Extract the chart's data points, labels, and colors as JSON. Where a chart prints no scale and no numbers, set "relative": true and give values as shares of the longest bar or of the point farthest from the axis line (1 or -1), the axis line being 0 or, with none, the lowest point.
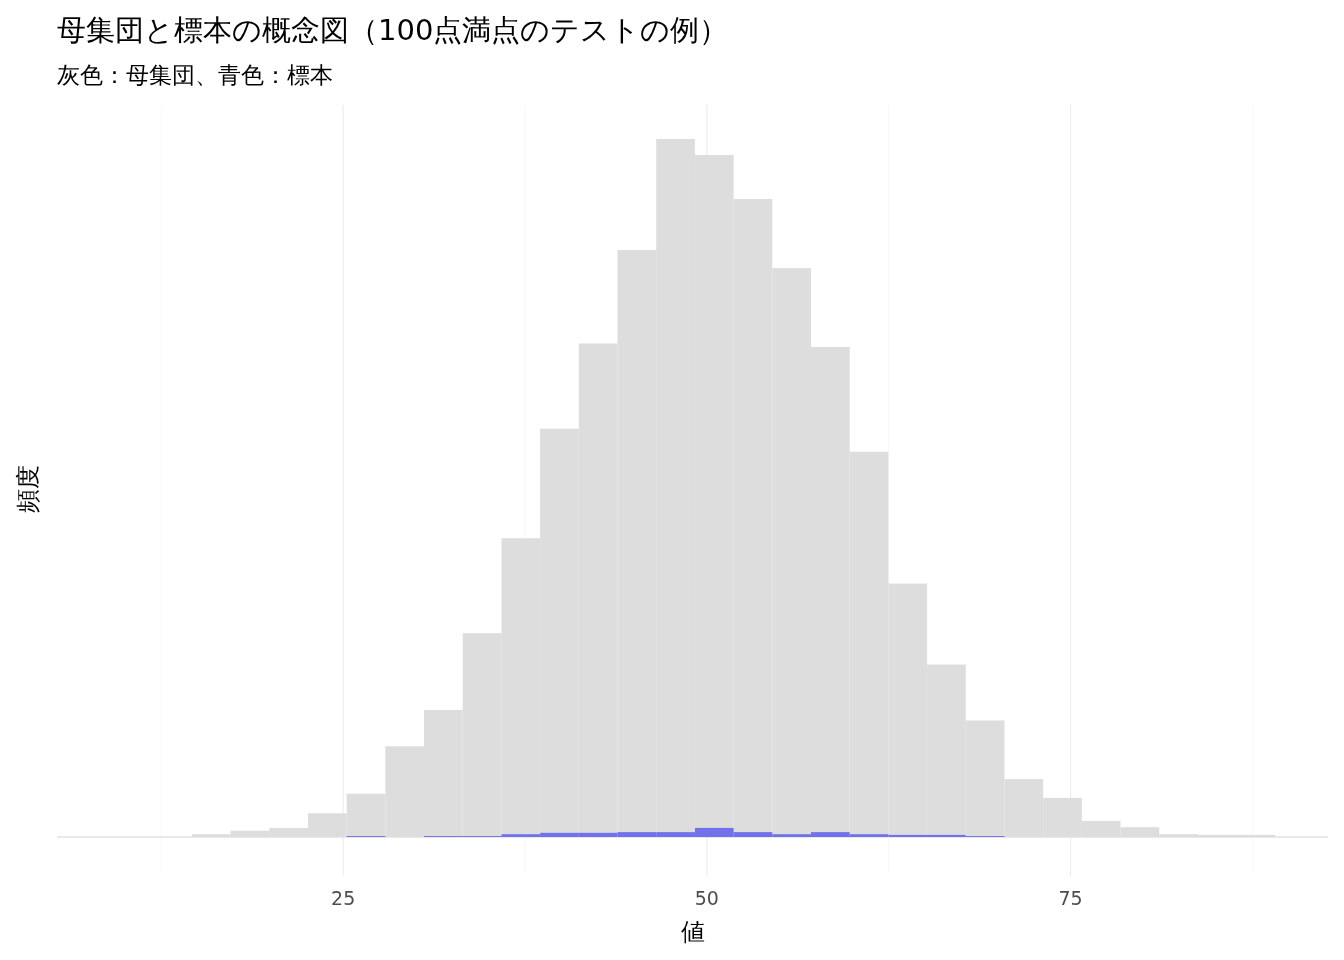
{
  "chart_data": {
    "type": "bar",
    "title": "母集団と標本の概念図（100点満点のテストの例）",
    "subtitle": "灰色：母集団、青色：標本",
    "xlabel": "値",
    "ylabel": "頻度",
    "relative": true,
    "x": [
      15.93,
      18.59,
      21.25,
      23.91,
      26.57,
      29.23,
      31.89,
      34.55,
      37.21,
      39.87,
      42.53,
      45.19,
      47.85,
      50.51,
      53.17,
      55.83,
      58.49,
      61.15,
      63.81,
      66.47,
      69.13,
      71.79,
      74.45,
      77.11,
      79.77,
      82.43,
      85.09,
      87.75
    ],
    "series": [
      {
        "color": "#dddddd",
        "values": [
          0.004,
          0.009,
          0.013,
          0.034,
          0.062,
          0.13,
          0.182,
          0.292,
          0.428,
          0.585,
          0.707,
          0.841,
          1,
          0.977,
          0.914,
          0.815,
          0.702,
          0.552,
          0.363,
          0.247,
          0.167,
          0.083,
          0.056,
          0.023,
          0.014,
          0.004,
          0.003,
          0.003
        ]
      },
      {
        "color": "#7171ee",
        "values": [
          0,
          0,
          0,
          0,
          0.0014,
          0,
          0.0014,
          0.0014,
          0.004,
          0.006,
          0.006,
          0.007,
          0.007,
          0.013,
          0.007,
          0.004,
          0.007,
          0.004,
          0.003,
          0.003,
          0.0014,
          0,
          0,
          0,
          0,
          0,
          0,
          0
        ]
      }
    ],
    "xlim": [
      5.33,
      92.7
    ],
    "xticks": [
      25,
      50,
      75
    ],
    "grid": "x"
  }
}
